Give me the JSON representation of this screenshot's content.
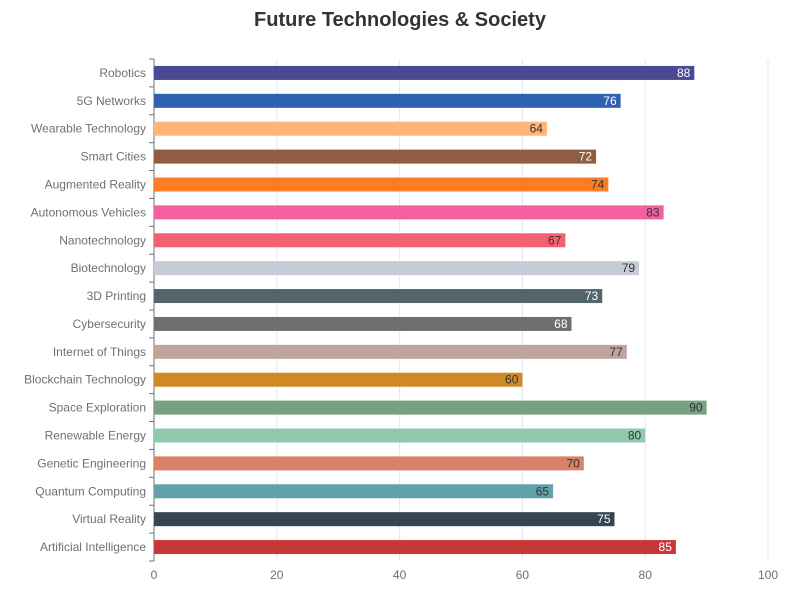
{
  "chart_data": {
    "type": "bar",
    "orientation": "horizontal",
    "title": "Future Technologies & Society",
    "xlabel": "",
    "ylabel": "",
    "xlim": [
      0,
      100
    ],
    "x_ticks": [
      0,
      20,
      40,
      60,
      80,
      100
    ],
    "grid": true,
    "data_labels": "inside-end",
    "categories": [
      "Robotics",
      "5G Networks",
      "Wearable Technology",
      "Smart Cities",
      "Augmented Reality",
      "Autonomous Vehicles",
      "Nanotechnology",
      "Biotechnology",
      "3D Printing",
      "Cybersecurity",
      "Internet of Things",
      "Blockchain Technology",
      "Space Exploration",
      "Renewable Energy",
      "Genetic Engineering",
      "Quantum Computing",
      "Virtual Reality",
      "Artificial Intelligence"
    ],
    "values": [
      88,
      76,
      64,
      72,
      74,
      83,
      67,
      79,
      73,
      68,
      77,
      60,
      90,
      80,
      70,
      65,
      75,
      85
    ],
    "colors": [
      "#4b4994",
      "#2e61b1",
      "#ffb57a",
      "#905d41",
      "#fd7d24",
      "#f4609e",
      "#f36072",
      "#c5ccd5",
      "#55636d",
      "#6e6f70",
      "#c0a59d",
      "#cf8a26",
      "#76a183",
      "#91c9ad",
      "#d8826a",
      "#62a1a9",
      "#344554",
      "#c93838"
    ],
    "label_colors": [
      "#ffffff",
      "#ffffff",
      "#333333",
      "#ffffff",
      "#333333",
      "#333333",
      "#333333",
      "#333333",
      "#ffffff",
      "#ffffff",
      "#333333",
      "#333333",
      "#333333",
      "#333333",
      "#333333",
      "#333333",
      "#ffffff",
      "#ffffff"
    ],
    "axis_color": "#6e7079",
    "grid_color": "#e0e6f1"
  }
}
